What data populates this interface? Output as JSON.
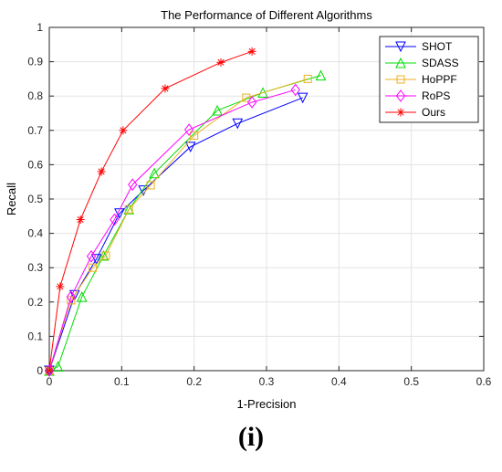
{
  "panel_label": "(i)",
  "chart_data": {
    "type": "line",
    "title": "The Performance of Different Algorithms",
    "xlabel": "1-Precision",
    "ylabel": "Recall",
    "xlim": [
      0,
      0.6
    ],
    "ylim": [
      0,
      1
    ],
    "xticks": [
      0,
      0.1,
      0.2,
      0.3,
      0.4,
      0.5,
      0.6
    ],
    "xtick_labels": [
      "0",
      "0.1",
      "0.2",
      "0.3",
      "0.4",
      "0.5",
      "0.6"
    ],
    "yticks": [
      0,
      0.1,
      0.2,
      0.3,
      0.4,
      0.5,
      0.6,
      0.7,
      0.8,
      0.9,
      1
    ],
    "ytick_labels": [
      "0",
      "0.1",
      "0.2",
      "0.3",
      "0.4",
      "0.5",
      "0.6",
      "0.7",
      "0.8",
      "0.9",
      "1"
    ],
    "grid": true,
    "legend_position": "top-right",
    "series": [
      {
        "name": "SHOT",
        "color": "#0000ff",
        "marker": "triangle-down",
        "x": [
          0,
          0.035,
          0.065,
          0.097,
          0.13,
          0.195,
          0.26,
          0.35
        ],
        "y": [
          0,
          0.22,
          0.325,
          0.458,
          0.525,
          0.652,
          0.72,
          0.795
        ]
      },
      {
        "name": "SDASS",
        "color": "#00dd00",
        "marker": "triangle-up",
        "x": [
          0,
          0.012,
          0.045,
          0.075,
          0.11,
          0.145,
          0.232,
          0.295,
          0.375
        ],
        "y": [
          0,
          0.012,
          0.215,
          0.335,
          0.47,
          0.575,
          0.758,
          0.81,
          0.86
        ]
      },
      {
        "name": "HoPPF",
        "color": "#edb120",
        "marker": "square",
        "x": [
          0,
          0.03,
          0.06,
          0.078,
          0.11,
          0.14,
          0.2,
          0.272,
          0.357
        ],
        "y": [
          0,
          0.205,
          0.3,
          0.335,
          0.47,
          0.54,
          0.685,
          0.795,
          0.85
        ]
      },
      {
        "name": "RoPS",
        "color": "#ff00ff",
        "marker": "diamond",
        "x": [
          0,
          0.03,
          0.058,
          0.09,
          0.115,
          0.193,
          0.28,
          0.34
        ],
        "y": [
          0,
          0.215,
          0.333,
          0.44,
          0.542,
          0.702,
          0.782,
          0.818
        ]
      },
      {
        "name": "Ours",
        "color": "#ff0000",
        "marker": "asterisk",
        "x": [
          0,
          0.015,
          0.043,
          0.072,
          0.102,
          0.16,
          0.237,
          0.28
        ],
        "y": [
          0,
          0.245,
          0.44,
          0.58,
          0.7,
          0.822,
          0.898,
          0.93
        ]
      }
    ]
  }
}
